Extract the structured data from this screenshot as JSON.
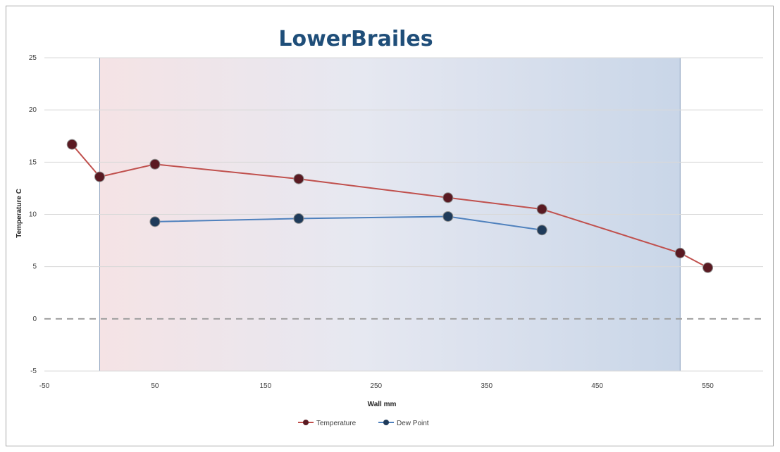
{
  "chart_data": {
    "type": "line",
    "title": "LowerBrailes",
    "xlabel": "Wall mm",
    "ylabel": "Temperature C",
    "xlim": [
      -50,
      600
    ],
    "ylim": [
      -5,
      25
    ],
    "x_ticks": [
      "-50",
      "50",
      "150",
      "250",
      "350",
      "450",
      "550"
    ],
    "y_ticks": [
      "-5",
      "0",
      "5",
      "10",
      "15",
      "20",
      "25"
    ],
    "grid": true,
    "legend_position": "bottom",
    "wall_region": [
      0,
      525
    ],
    "freezing_line": 0,
    "series": [
      {
        "name": "Temperature",
        "color": "#c0504d",
        "marker_color": "#5a1a22",
        "points": [
          [
            -25,
            16.7
          ],
          [
            0,
            13.6
          ],
          [
            50,
            14.8
          ],
          [
            180,
            13.4
          ],
          [
            315,
            11.6
          ],
          [
            400,
            10.5
          ],
          [
            525,
            6.3
          ],
          [
            550,
            4.9
          ]
        ]
      },
      {
        "name": "Dew Point",
        "color": "#4f81bd",
        "marker_color": "#1f3b5a",
        "points": [
          [
            50,
            9.3
          ],
          [
            180,
            9.6
          ],
          [
            315,
            9.8
          ],
          [
            400,
            8.5
          ]
        ]
      }
    ]
  }
}
